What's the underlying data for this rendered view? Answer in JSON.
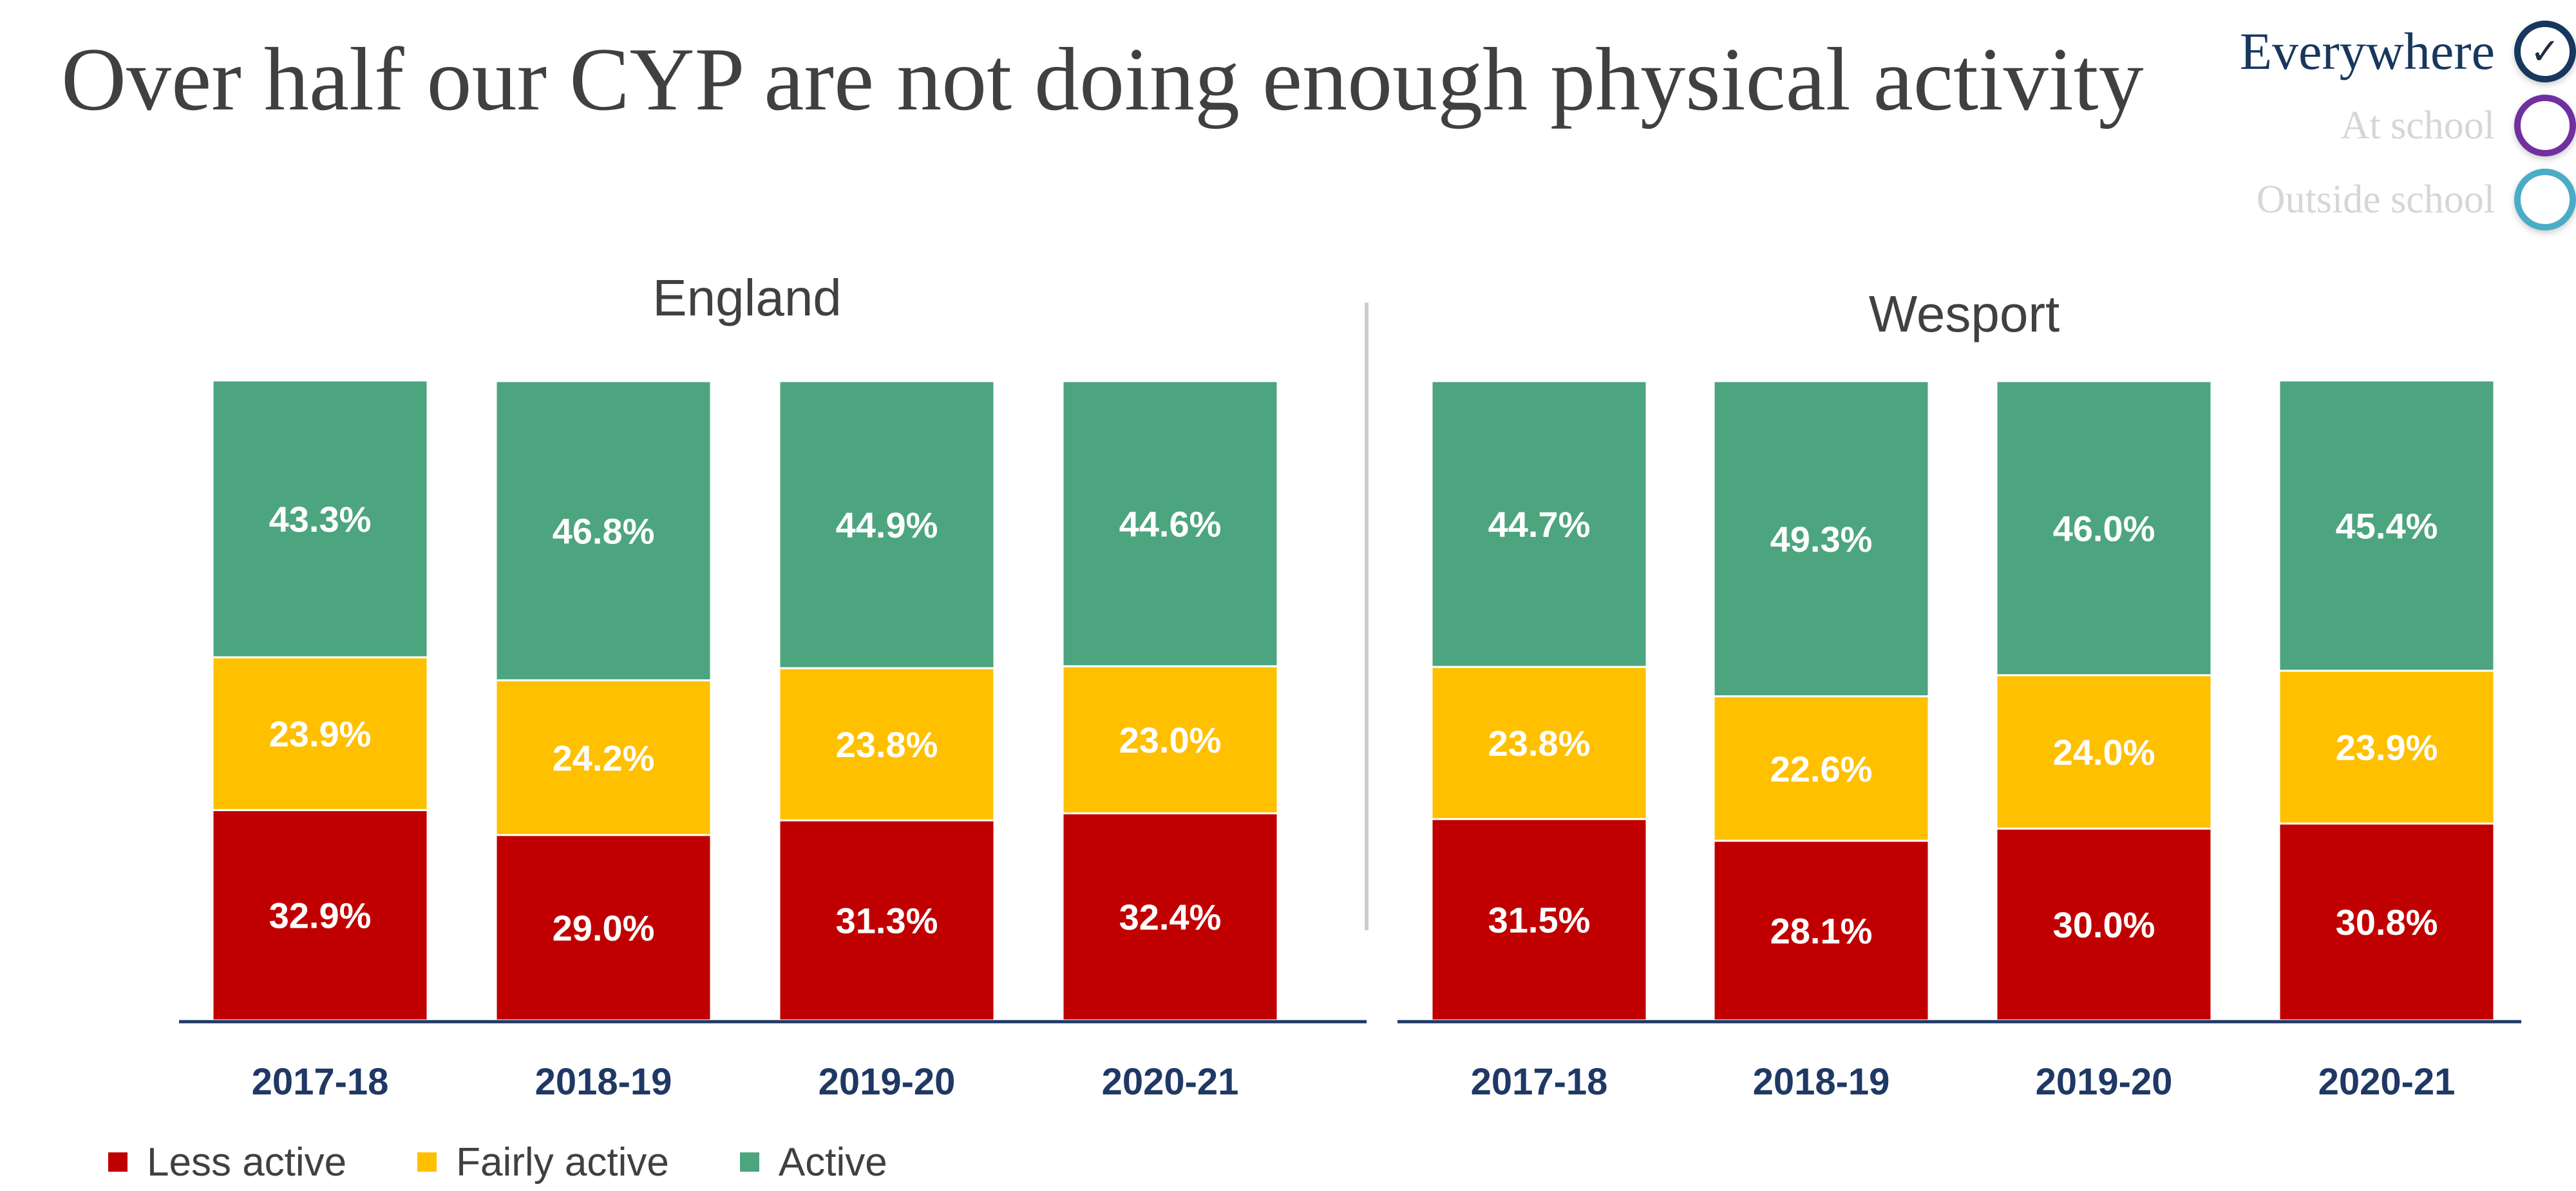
{
  "page": {
    "title": "Over half our CYP are not doing enough physical activity"
  },
  "filters": {
    "items": [
      {
        "label": "Everywhere",
        "state": "selected",
        "ring_color": "#17375e",
        "icon": "check-icon",
        "icon_glyph": "✓"
      },
      {
        "label": "At school",
        "state": "unselected",
        "ring_color": "#7030a0",
        "icon": "",
        "icon_glyph": ""
      },
      {
        "label": "Outside school",
        "state": "unselected",
        "ring_color": "#4bacc6",
        "icon": "",
        "icon_glyph": ""
      }
    ]
  },
  "legend": [
    {
      "label": "Less active",
      "color": "#c00000"
    },
    {
      "label": "Fairly active",
      "color": "#ffc000"
    },
    {
      "label": "Active",
      "color": "#4ca57f"
    }
  ],
  "chart_data": [
    {
      "type": "bar",
      "stacked": true,
      "title": "England",
      "categories": [
        "2017-18",
        "2018-19",
        "2019-20",
        "2020-21"
      ],
      "series": [
        {
          "name": "Less active",
          "color": "#c00000",
          "values": [
            32.9,
            29.0,
            31.3,
            32.4
          ],
          "labels": [
            "32.9%",
            "29.0%",
            "31.3%",
            "32.4%"
          ]
        },
        {
          "name": "Fairly active",
          "color": "#ffc000",
          "values": [
            23.9,
            24.2,
            23.8,
            23.0
          ],
          "labels": [
            "23.9%",
            "24.2%",
            "23.8%",
            "23.0%"
          ]
        },
        {
          "name": "Active",
          "color": "#4ca57f",
          "values": [
            43.3,
            46.8,
            44.9,
            44.6
          ],
          "labels": [
            "43.3%",
            "46.8%",
            "44.9%",
            "44.6%"
          ]
        }
      ],
      "ylim": [
        0,
        100
      ],
      "grid": false
    },
    {
      "type": "bar",
      "stacked": true,
      "title": "Wesport",
      "categories": [
        "2017-18",
        "2018-19",
        "2019-20",
        "2020-21"
      ],
      "series": [
        {
          "name": "Less active",
          "color": "#c00000",
          "values": [
            31.5,
            28.1,
            30.0,
            30.8
          ],
          "labels": [
            "31.5%",
            "28.1%",
            "30.0%",
            "30.8%"
          ]
        },
        {
          "name": "Fairly active",
          "color": "#ffc000",
          "values": [
            23.8,
            22.6,
            24.0,
            23.9
          ],
          "labels": [
            "23.8%",
            "22.6%",
            "24.0%",
            "23.9%"
          ]
        },
        {
          "name": "Active",
          "color": "#4ca57f",
          "values": [
            44.7,
            49.3,
            46.0,
            45.4
          ],
          "labels": [
            "44.7%",
            "49.3%",
            "46.0%",
            "45.4%"
          ]
        }
      ],
      "ylim": [
        0,
        100
      ],
      "grid": false
    }
  ]
}
